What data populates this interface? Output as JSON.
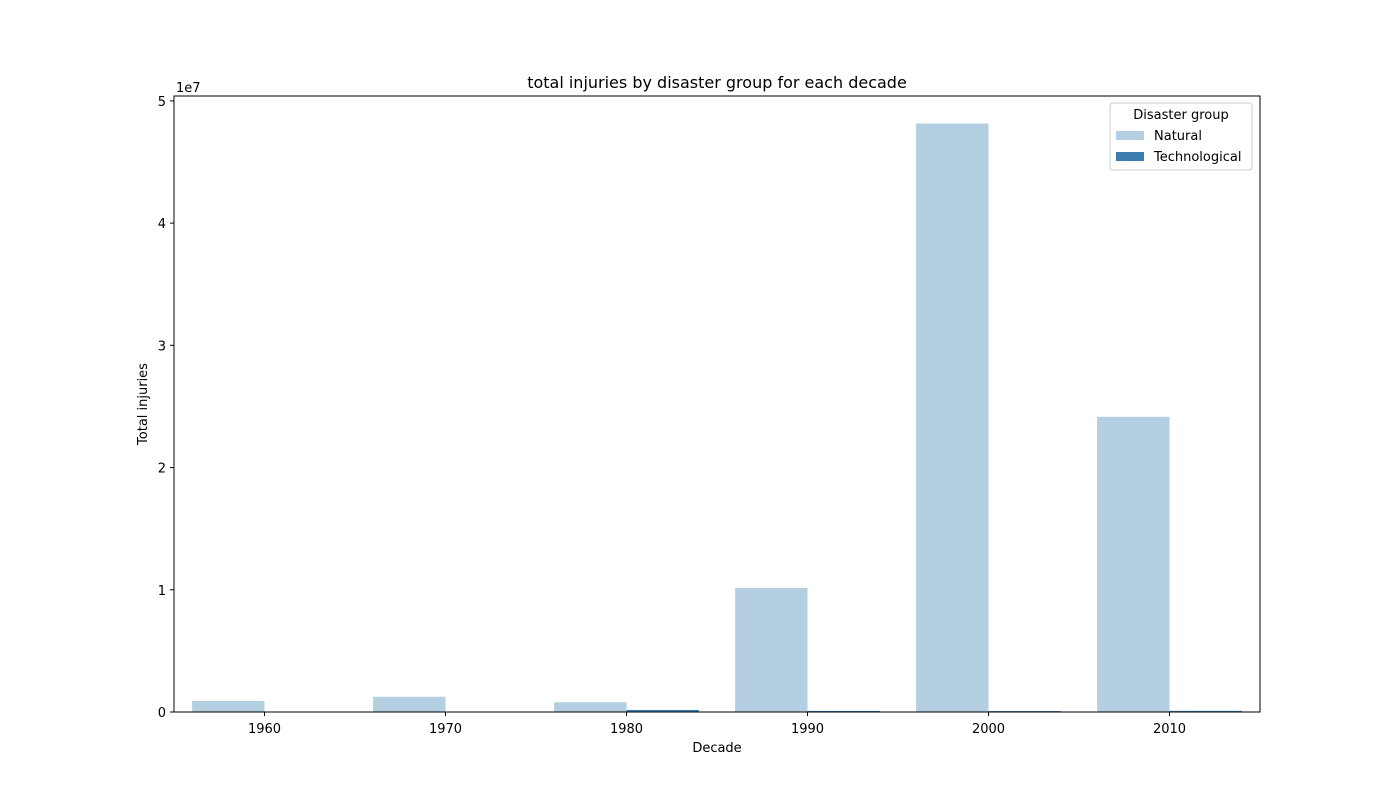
{
  "chart_data": {
    "type": "bar",
    "title": "total injuries by disaster group for each decade",
    "xlabel": "Decade",
    "ylabel": "Total injuries",
    "y_offset_label": "1e7",
    "categories": [
      "1960",
      "1970",
      "1980",
      "1990",
      "2000",
      "2010"
    ],
    "ylim": [
      0,
      50400000
    ],
    "yticks": [
      0,
      10000000,
      20000000,
      30000000,
      40000000,
      50000000
    ],
    "ytick_labels": [
      "0",
      "1",
      "2",
      "3",
      "4",
      "5"
    ],
    "series": [
      {
        "name": "Natural",
        "color": "#b3cfe1",
        "values": [
          900000,
          1250000,
          800000,
          10150000,
          48150000,
          24150000
        ]
      },
      {
        "name": "Technological",
        "color": "#3d7eb1",
        "values": [
          20000,
          30000,
          170000,
          90000,
          75000,
          95000
        ]
      }
    ],
    "legend": {
      "title": "Disaster group",
      "position": "top-right"
    },
    "grid": false
  }
}
